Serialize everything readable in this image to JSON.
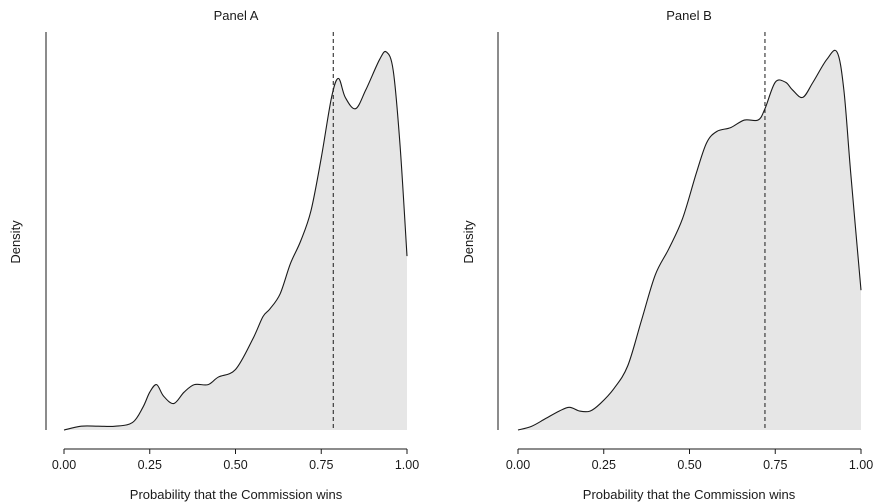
{
  "chart_data": [
    {
      "type": "area",
      "title": "Panel A",
      "xlabel": "Probability that the Commission wins",
      "ylabel": "Density",
      "xlim": [
        0,
        1
      ],
      "x_ticks": [
        "0.00",
        "0.25",
        "0.50",
        "0.75",
        "1.00"
      ],
      "y_ticks_shown": false,
      "grid": false,
      "reference_line": 0.785,
      "fill_color": "#e6e6e6",
      "x": [
        0.0,
        0.05,
        0.1,
        0.15,
        0.2,
        0.23,
        0.25,
        0.27,
        0.29,
        0.32,
        0.35,
        0.38,
        0.42,
        0.45,
        0.5,
        0.55,
        0.58,
        0.6,
        0.63,
        0.66,
        0.69,
        0.72,
        0.75,
        0.78,
        0.8,
        0.82,
        0.85,
        0.88,
        0.92,
        0.94,
        0.96,
        0.98,
        1.0
      ],
      "y": [
        0.0,
        0.01,
        0.01,
        0.01,
        0.02,
        0.06,
        0.1,
        0.12,
        0.09,
        0.07,
        0.1,
        0.12,
        0.12,
        0.14,
        0.16,
        0.24,
        0.3,
        0.32,
        0.36,
        0.44,
        0.5,
        0.58,
        0.72,
        0.88,
        0.93,
        0.88,
        0.85,
        0.9,
        0.98,
        1.0,
        0.95,
        0.75,
        0.46
      ]
    },
    {
      "type": "area",
      "title": "Panel B",
      "xlabel": "Probability that the Commission wins",
      "ylabel": "Density",
      "xlim": [
        0,
        1
      ],
      "x_ticks": [
        "0.00",
        "0.25",
        "0.50",
        "0.75",
        "1.00"
      ],
      "y_ticks_shown": false,
      "grid": false,
      "reference_line": 0.72,
      "fill_color": "#e6e6e6",
      "x": [
        0.0,
        0.04,
        0.08,
        0.12,
        0.15,
        0.18,
        0.21,
        0.24,
        0.28,
        0.32,
        0.36,
        0.4,
        0.44,
        0.48,
        0.52,
        0.55,
        0.58,
        0.62,
        0.66,
        0.7,
        0.72,
        0.75,
        0.78,
        0.8,
        0.83,
        0.86,
        0.9,
        0.93,
        0.95,
        0.97,
        1.0
      ],
      "y": [
        0.0,
        0.01,
        0.03,
        0.05,
        0.06,
        0.05,
        0.05,
        0.07,
        0.11,
        0.17,
        0.29,
        0.41,
        0.48,
        0.56,
        0.68,
        0.76,
        0.79,
        0.8,
        0.82,
        0.82,
        0.85,
        0.92,
        0.92,
        0.9,
        0.88,
        0.92,
        0.98,
        1.0,
        0.9,
        0.68,
        0.37
      ]
    }
  ]
}
